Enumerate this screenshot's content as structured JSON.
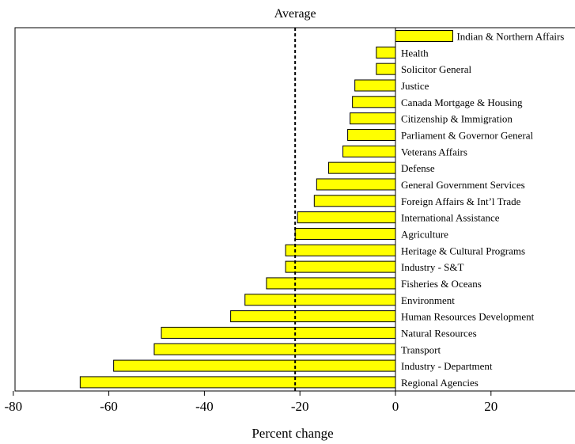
{
  "chart_data": {
    "type": "bar",
    "orientation": "horizontal",
    "title": "",
    "xlabel": "Percent change",
    "ylabel": "",
    "xlim": [
      -80,
      37
    ],
    "xticks": [
      -80,
      -60,
      -40,
      -20,
      0,
      20
    ],
    "xtick_labels": [
      "-80",
      "-60",
      "-40",
      "-20",
      "0",
      "20"
    ],
    "grid": false,
    "bar_color": "#ffff00",
    "reference_line": {
      "label": "Average",
      "value": -21,
      "style": "dashed",
      "color": "#000000"
    },
    "categories": [
      "Indian & Northern Affairs",
      "Health",
      "Solicitor General",
      "Justice",
      "Canada Mortgage & Housing",
      "Citizenship & Immigration",
      "Parliament & Governor General",
      "Veterans Affairs",
      "Defense",
      "General Government Services",
      "Foreign Affairs & Int’l Trade",
      "International Assistance",
      "Agriculture",
      "Heritage & Cultural Programs",
      "Industry - S&T",
      "Fisheries & Oceans",
      "Environment",
      "Human Resources Development",
      "Natural Resources",
      "Transport",
      "Industry - Department",
      "Regional Agencies"
    ],
    "values": [
      12,
      -4,
      -4,
      -8.5,
      -9,
      -9.5,
      -10,
      -11,
      -14,
      -16.5,
      -17,
      -20.5,
      -21,
      -23,
      -23,
      -27,
      -31.5,
      -34.5,
      -49,
      -50.5,
      -59,
      -66
    ]
  }
}
